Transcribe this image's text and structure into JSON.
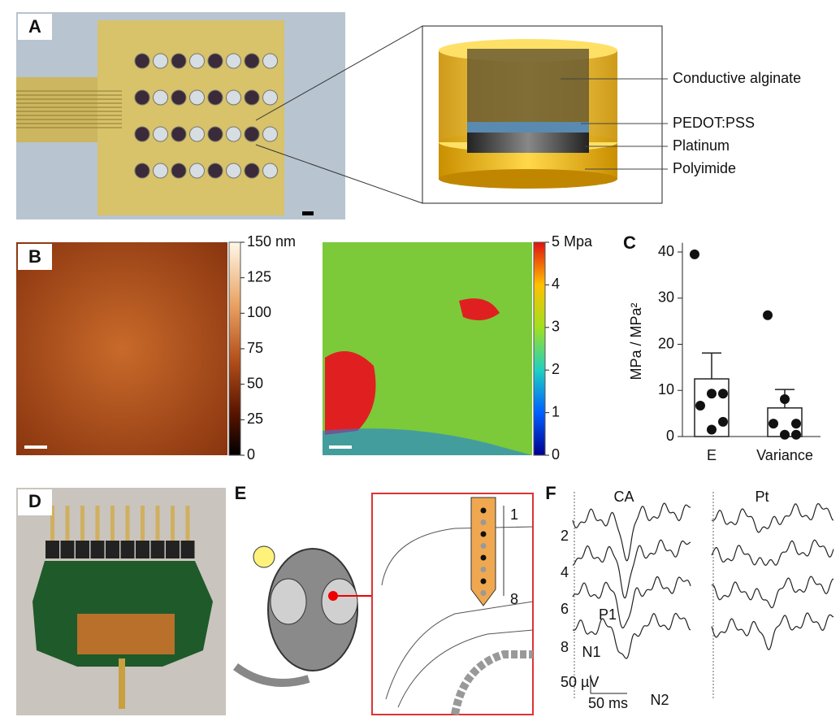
{
  "panels": {
    "A": {
      "label": "A",
      "layers": [
        "Conductive alginate",
        "PEDOT:PSS",
        "Platinum",
        "Polyimide"
      ]
    },
    "B": {
      "label": "B",
      "height_map": {
        "lim": [
          0,
          150
        ],
        "ticks": [
          {
            "value": 150,
            "label": "150 nm"
          },
          125,
          100,
          75,
          50,
          25,
          0
        ]
      },
      "modulus_map": {
        "lim": [
          0,
          5
        ],
        "ticks": [
          {
            "value": 5,
            "label": "5 Mpa"
          },
          4,
          3,
          2,
          1,
          0
        ]
      }
    },
    "C": {
      "label": "C"
    },
    "D": {
      "label": "D"
    },
    "E": {
      "label": "E",
      "channels": [
        "1",
        "8"
      ]
    },
    "F": {
      "label": "F",
      "conditions": [
        "CA",
        "Pt"
      ],
      "channels": [
        "2",
        "4",
        "6",
        "8"
      ],
      "peaks": [
        "P1",
        "N1",
        "N2"
      ],
      "scale_y": "50 µV",
      "scale_x": "50 ms"
    }
  },
  "chart_data": {
    "type": "bar",
    "categories": [
      "E",
      "Variance"
    ],
    "values": [
      12.5,
      6.2
    ],
    "errors": [
      5.6,
      4.0
    ],
    "points": [
      [
        39.5,
        9.3,
        9.3,
        6.7,
        3.2,
        1.5
      ],
      [
        26.3,
        8.1,
        2.8,
        2.8,
        0.4,
        0.4
      ]
    ],
    "ylabel": "MPa / MPa²",
    "ylim": [
      0,
      42
    ],
    "yticks": [
      0,
      10,
      20,
      30,
      40
    ],
    "color": "#ffffff"
  }
}
